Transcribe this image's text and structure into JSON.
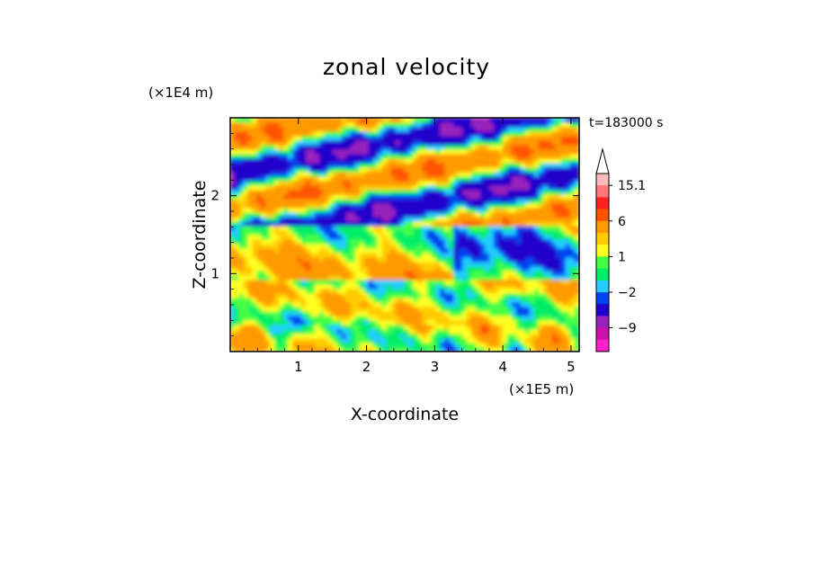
{
  "chart_data": {
    "type": "heatmap",
    "title": "zonal velocity",
    "xlabel": "X-coordinate",
    "ylabel": "Z-coordinate",
    "x_unit": "(×1E5 m)",
    "y_unit": "(×1E4 m)",
    "time_label": "t=183000 s",
    "xlim": [
      0,
      5.12
    ],
    "ylim": [
      0,
      3.0
    ],
    "x_ticks": [
      1,
      2,
      3,
      4,
      5
    ],
    "y_ticks": [
      1,
      2
    ],
    "colorbar": {
      "levels": [
        -15,
        -12,
        -9,
        -6,
        -3,
        -2,
        -1,
        0,
        1,
        2,
        3,
        6,
        9,
        12,
        15.1
      ],
      "colors": [
        "#ff22cc",
        "#cc11aa",
        "#9922bb",
        "#2200cc",
        "#0044ee",
        "#22ccff",
        "#00ee66",
        "#44ff44",
        "#ffff22",
        "#ffcc00",
        "#ff9900",
        "#ff5500",
        "#ff2222",
        "#ff7777",
        "#ffbbbb"
      ],
      "tick_labels": [
        "15.1",
        "6",
        "1",
        "−2",
        "−9"
      ],
      "tick_values": [
        15.1,
        6,
        1,
        -2,
        -9
      ]
    },
    "field_description_values": {
      "upper_layer": "alternating positive/negative bands slanting upward to the right",
      "lower_layer": "mostly weak positive (0 to 3) with patches of negative"
    }
  }
}
